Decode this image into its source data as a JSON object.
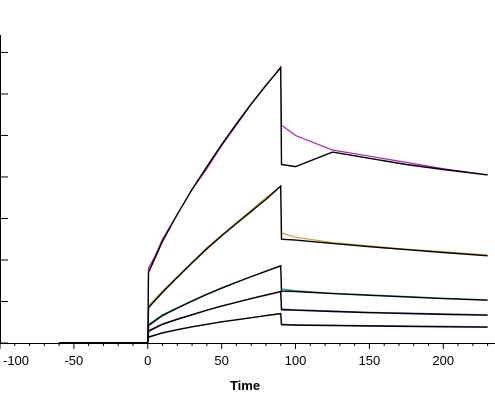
{
  "chart_data": {
    "type": "line",
    "xlabel": "Time",
    "ylabel": "",
    "xlim": [
      -100,
      235
    ],
    "ylim": [
      0,
      7.3
    ],
    "x_ticks": [
      -100,
      -50,
      0,
      50,
      100,
      150,
      200
    ],
    "x_tick_labels": [
      "-100",
      "-50",
      "0",
      "50",
      "100",
      "150",
      "200"
    ],
    "y_ticks": [
      0,
      1,
      2,
      3,
      4,
      5,
      6,
      7
    ],
    "y_tick_labels": [
      "",
      "",
      "",
      "",
      "",
      "",
      "",
      ""
    ],
    "grid": false,
    "fit_color": "#000000",
    "series": [
      {
        "color": "#aa22aa",
        "points": [
          [
            -60,
            0
          ],
          [
            -30,
            0
          ],
          [
            0,
            0
          ],
          [
            0.5,
            1.8
          ],
          [
            5,
            2.1
          ],
          [
            10,
            2.5
          ],
          [
            20,
            3.1
          ],
          [
            30,
            3.7
          ],
          [
            40,
            4.2
          ],
          [
            50,
            4.75
          ],
          [
            60,
            5.25
          ],
          [
            70,
            5.75
          ],
          [
            80,
            6.2
          ],
          [
            90,
            6.65
          ],
          [
            90.5,
            5.25
          ],
          [
            100,
            5.0
          ],
          [
            125,
            4.65
          ],
          [
            150,
            4.5
          ],
          [
            175,
            4.35
          ],
          [
            200,
            4.2
          ],
          [
            230,
            4.05
          ]
        ],
        "fit": [
          [
            -60,
            0
          ],
          [
            0,
            0
          ],
          [
            0.5,
            1.7
          ],
          [
            5,
            2.05
          ],
          [
            10,
            2.45
          ],
          [
            20,
            3.1
          ],
          [
            30,
            3.7
          ],
          [
            40,
            4.25
          ],
          [
            50,
            4.78
          ],
          [
            60,
            5.28
          ],
          [
            70,
            5.76
          ],
          [
            80,
            6.21
          ],
          [
            90,
            6.63
          ],
          [
            90.5,
            4.3
          ],
          [
            100,
            4.25
          ],
          [
            125,
            4.6
          ],
          [
            150,
            4.45
          ],
          [
            175,
            4.3
          ],
          [
            200,
            4.18
          ],
          [
            230,
            4.05
          ]
        ]
      },
      {
        "color": "#c8a040",
        "points": [
          [
            -60,
            0
          ],
          [
            0,
            0
          ],
          [
            0.5,
            0.9
          ],
          [
            10,
            1.25
          ],
          [
            20,
            1.6
          ],
          [
            30,
            1.95
          ],
          [
            40,
            2.3
          ],
          [
            50,
            2.6
          ],
          [
            60,
            2.9
          ],
          [
            70,
            3.2
          ],
          [
            80,
            3.5
          ],
          [
            90,
            3.78
          ],
          [
            90.5,
            2.65
          ],
          [
            100,
            2.55
          ],
          [
            125,
            2.42
          ],
          [
            150,
            2.34
          ],
          [
            175,
            2.26
          ],
          [
            200,
            2.2
          ],
          [
            230,
            2.12
          ]
        ],
        "fit": [
          [
            -60,
            0
          ],
          [
            0,
            0
          ],
          [
            0.5,
            0.85
          ],
          [
            10,
            1.22
          ],
          [
            20,
            1.58
          ],
          [
            30,
            1.93
          ],
          [
            40,
            2.27
          ],
          [
            50,
            2.58
          ],
          [
            60,
            2.88
          ],
          [
            70,
            3.17
          ],
          [
            80,
            3.46
          ],
          [
            90,
            3.78
          ],
          [
            90.5,
            2.5
          ],
          [
            100,
            2.48
          ],
          [
            125,
            2.4
          ],
          [
            150,
            2.32
          ],
          [
            175,
            2.25
          ],
          [
            200,
            2.18
          ],
          [
            230,
            2.1
          ]
        ]
      },
      {
        "color": "#20a0a0",
        "points": [
          [
            -60,
            0
          ],
          [
            0,
            0
          ],
          [
            0.5,
            0.45
          ],
          [
            10,
            0.68
          ],
          [
            20,
            0.85
          ],
          [
            30,
            1.02
          ],
          [
            40,
            1.18
          ],
          [
            50,
            1.33
          ],
          [
            60,
            1.47
          ],
          [
            70,
            1.6
          ],
          [
            80,
            1.73
          ],
          [
            90,
            1.85
          ],
          [
            90.5,
            1.3
          ],
          [
            100,
            1.26
          ],
          [
            125,
            1.2
          ],
          [
            150,
            1.16
          ],
          [
            175,
            1.12
          ],
          [
            200,
            1.08
          ],
          [
            230,
            1.04
          ]
        ],
        "fit": [
          [
            -60,
            0
          ],
          [
            0,
            0
          ],
          [
            0.5,
            0.42
          ],
          [
            10,
            0.66
          ],
          [
            20,
            0.84
          ],
          [
            30,
            1.01
          ],
          [
            40,
            1.17
          ],
          [
            50,
            1.32
          ],
          [
            60,
            1.46
          ],
          [
            70,
            1.6
          ],
          [
            80,
            1.73
          ],
          [
            90,
            1.86
          ],
          [
            90.5,
            1.25
          ],
          [
            100,
            1.24
          ],
          [
            125,
            1.19
          ],
          [
            150,
            1.15
          ],
          [
            175,
            1.11
          ],
          [
            200,
            1.07
          ],
          [
            230,
            1.03
          ]
        ]
      },
      {
        "color": "#7030a0",
        "points": [
          [
            -60,
            0
          ],
          [
            0,
            0
          ],
          [
            0.5,
            0.3
          ],
          [
            10,
            0.46
          ],
          [
            20,
            0.58
          ],
          [
            30,
            0.69
          ],
          [
            40,
            0.79
          ],
          [
            50,
            0.89
          ],
          [
            60,
            0.98
          ],
          [
            70,
            1.07
          ],
          [
            80,
            1.15
          ],
          [
            90,
            1.23
          ],
          [
            90.5,
            0.82
          ],
          [
            100,
            0.8
          ],
          [
            125,
            0.77
          ],
          [
            150,
            0.74
          ],
          [
            175,
            0.72
          ],
          [
            200,
            0.7
          ],
          [
            230,
            0.68
          ]
        ],
        "fit": [
          [
            -60,
            0
          ],
          [
            0,
            0
          ],
          [
            0.5,
            0.28
          ],
          [
            10,
            0.45
          ],
          [
            20,
            0.57
          ],
          [
            30,
            0.68
          ],
          [
            40,
            0.79
          ],
          [
            50,
            0.89
          ],
          [
            60,
            0.98
          ],
          [
            70,
            1.07
          ],
          [
            80,
            1.16
          ],
          [
            90,
            1.24
          ],
          [
            90.5,
            0.8
          ],
          [
            100,
            0.79
          ],
          [
            125,
            0.76
          ],
          [
            150,
            0.73
          ],
          [
            175,
            0.71
          ],
          [
            200,
            0.69
          ],
          [
            230,
            0.67
          ]
        ]
      },
      {
        "color": "#3040b0",
        "points": [
          [
            -60,
            0
          ],
          [
            0,
            0
          ],
          [
            0.5,
            0.15
          ],
          [
            10,
            0.25
          ],
          [
            20,
            0.32
          ],
          [
            30,
            0.39
          ],
          [
            40,
            0.45
          ],
          [
            50,
            0.51
          ],
          [
            60,
            0.56
          ],
          [
            70,
            0.61
          ],
          [
            80,
            0.66
          ],
          [
            90,
            0.7
          ],
          [
            90.5,
            0.45
          ],
          [
            100,
            0.44
          ],
          [
            125,
            0.43
          ],
          [
            150,
            0.42
          ],
          [
            175,
            0.41
          ],
          [
            200,
            0.4
          ],
          [
            230,
            0.39
          ]
        ],
        "fit": [
          [
            -60,
            0
          ],
          [
            0,
            0
          ],
          [
            0.5,
            0.14
          ],
          [
            10,
            0.24
          ],
          [
            20,
            0.32
          ],
          [
            30,
            0.39
          ],
          [
            40,
            0.45
          ],
          [
            50,
            0.51
          ],
          [
            60,
            0.56
          ],
          [
            70,
            0.61
          ],
          [
            80,
            0.66
          ],
          [
            90,
            0.71
          ],
          [
            90.5,
            0.44
          ],
          [
            100,
            0.43
          ],
          [
            125,
            0.42
          ],
          [
            150,
            0.41
          ],
          [
            175,
            0.4
          ],
          [
            200,
            0.39
          ],
          [
            230,
            0.38
          ]
        ]
      }
    ]
  }
}
